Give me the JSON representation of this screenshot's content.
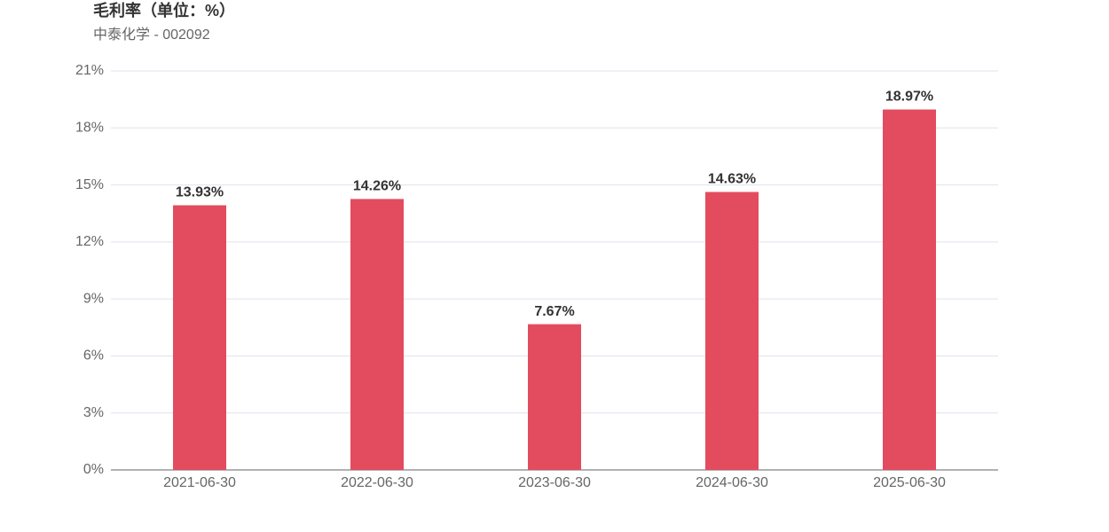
{
  "chart_data": {
    "type": "bar",
    "title": "毛利率（单位：%）",
    "subtitle": "中泰化学 - 002092",
    "categories": [
      "2021-06-30",
      "2022-06-30",
      "2023-06-30",
      "2024-06-30",
      "2025-06-30"
    ],
    "values": [
      13.93,
      14.26,
      7.67,
      14.63,
      18.97
    ],
    "value_labels": [
      "13.93%",
      "14.26%",
      "7.67%",
      "14.63%",
      "18.97%"
    ],
    "color": "#e34c5e",
    "ylim": [
      0,
      21
    ],
    "yticks": [
      {
        "value": 0,
        "label": "0%"
      },
      {
        "value": 3,
        "label": "3%"
      },
      {
        "value": 6,
        "label": "6%"
      },
      {
        "value": 9,
        "label": "9%"
      },
      {
        "value": 12,
        "label": "12%"
      },
      {
        "value": 15,
        "label": "15%"
      },
      {
        "value": 18,
        "label": "18%"
      },
      {
        "value": 21,
        "label": "21%"
      }
    ],
    "grid": true
  }
}
